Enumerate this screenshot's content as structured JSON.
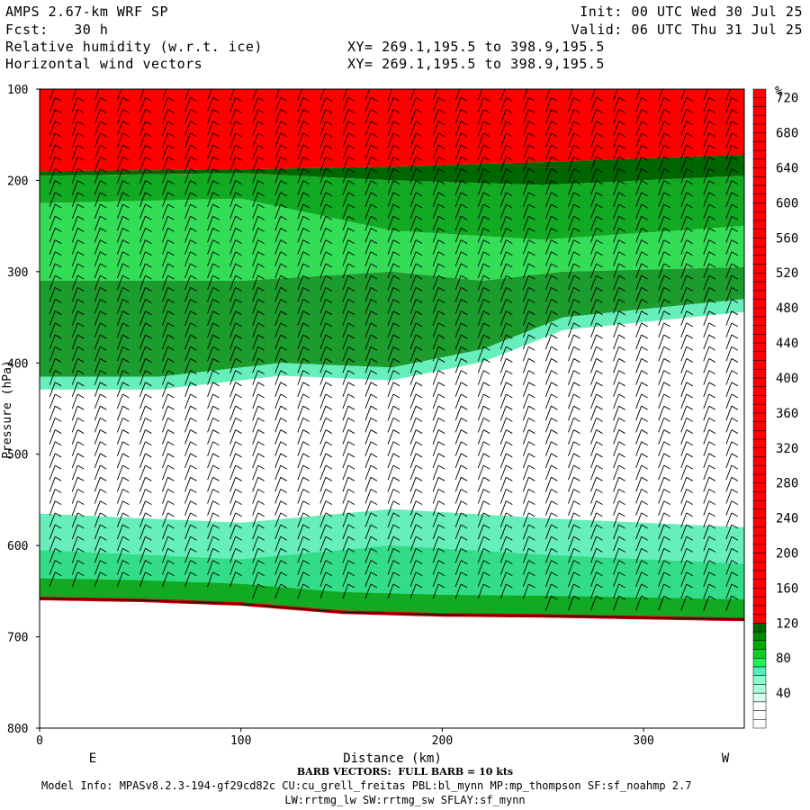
{
  "header": {
    "model": "AMPS 2.67-km WRF SP",
    "init": "Init: 00 UTC Wed 30 Jul 25",
    "fcst": "Fcst:   30 h",
    "valid": "Valid: 06 UTC Thu 31 Jul 25",
    "field1": "Relative humidity (w.r.t. ice)",
    "xy1": "XY= 269.1,195.5 to 398.9,195.5",
    "field2": "Horizontal wind vectors",
    "xy2": "XY= 269.1,195.5 to 398.9,195.5"
  },
  "footer": {
    "barb": "BARB VECTORS:  FULL BARB = 10 kts",
    "model_info": "Model Info: MPASv8.2.3-194-gf29cd82c CU:cu_grell_freitas PBL:bl_mynn MP:mp_thompson SF:sf_noahmp 2.7",
    "model_info2": "LW:rrtmg_lw SW:rrtmg_sw SFLAY:sf_mynn"
  },
  "chart_data": {
    "type": "heatmap",
    "xlabel": "Distance (km)",
    "ylabel": "Pressure (hPa)",
    "xlim": [
      0,
      350
    ],
    "ylim": [
      800,
      100
    ],
    "x_ticks": [
      0,
      100,
      200,
      300
    ],
    "y_ticks": [
      100,
      200,
      300,
      400,
      500,
      600,
      700,
      800
    ],
    "direction_labels": {
      "left": "E",
      "right": "W"
    },
    "colorbar": {
      "unit": "%",
      "tick_labels": [
        40,
        80,
        120,
        160,
        200,
        240,
        280,
        320,
        360,
        400,
        440,
        480,
        520,
        560,
        600,
        640,
        680,
        720
      ],
      "levels": [
        0,
        10,
        20,
        30,
        40,
        50,
        60,
        70,
        80,
        90,
        100,
        110,
        120,
        130,
        140,
        150,
        160,
        170,
        180,
        190,
        200,
        210,
        220,
        230,
        240,
        250,
        260,
        270,
        280,
        290,
        300,
        310,
        320,
        330,
        340,
        350,
        360,
        370,
        380,
        390,
        400,
        410,
        420,
        430,
        440,
        450,
        460,
        470,
        480,
        490,
        500,
        510,
        520,
        530,
        540,
        550,
        560,
        570,
        580,
        590,
        600,
        610,
        620,
        630,
        640,
        650,
        660,
        670,
        680,
        690,
        700,
        710,
        720,
        730
      ],
      "colors": [
        "#ffffff",
        "#ffffff",
        "#ffffff",
        "#c8ffe8",
        "#aaffdd",
        "#80ffcc",
        "#55eebb",
        "#33dd88",
        "#22cc44",
        "#11aa22",
        "#008800",
        "#006600",
        "#ff0000"
      ]
    },
    "surface_pressure": [
      {
        "x": 0,
        "p": 658
      },
      {
        "x": 50,
        "p": 660
      },
      {
        "x": 100,
        "p": 664
      },
      {
        "x": 150,
        "p": 673
      },
      {
        "x": 200,
        "p": 676
      },
      {
        "x": 250,
        "p": 677
      },
      {
        "x": 300,
        "p": 679
      },
      {
        "x": 350,
        "p": 681
      }
    ],
    "rh_regions": [
      {
        "level": "red",
        "desc_top": 100,
        "bottom_profile": [
          [
            0,
            190
          ],
          [
            100,
            188
          ],
          [
            175,
            185
          ],
          [
            250,
            180
          ],
          [
            350,
            172
          ]
        ]
      },
      {
        "level": "dark-green",
        "bottom_profile": [
          [
            0,
            195
          ],
          [
            100,
            192
          ],
          [
            175,
            200
          ],
          [
            250,
            205
          ],
          [
            350,
            195
          ]
        ]
      },
      {
        "level": "green",
        "bottom_profile": [
          [
            0,
            225
          ],
          [
            100,
            220
          ],
          [
            175,
            255
          ],
          [
            250,
            265
          ],
          [
            350,
            250
          ]
        ]
      },
      {
        "level": "mid-green",
        "bottom_profile": [
          [
            0,
            310
          ],
          [
            100,
            310
          ],
          [
            175,
            300
          ],
          [
            220,
            310
          ],
          [
            260,
            300
          ],
          [
            350,
            295
          ]
        ]
      },
      {
        "level": "dark-green-lower",
        "bottom_profile": [
          [
            0,
            415
          ],
          [
            60,
            415
          ],
          [
            120,
            400
          ],
          [
            175,
            405
          ],
          [
            220,
            385
          ],
          [
            260,
            350
          ],
          [
            350,
            330
          ]
        ]
      },
      {
        "level": "low-cyan",
        "top_profile": [
          [
            0,
            565
          ],
          [
            100,
            575
          ],
          [
            175,
            560
          ],
          [
            250,
            570
          ],
          [
            350,
            580
          ]
        ]
      }
    ],
    "wind": {
      "barb_full_kts": 10,
      "rows_hpa_step": 13,
      "columns_km_step": 11.2
    }
  }
}
